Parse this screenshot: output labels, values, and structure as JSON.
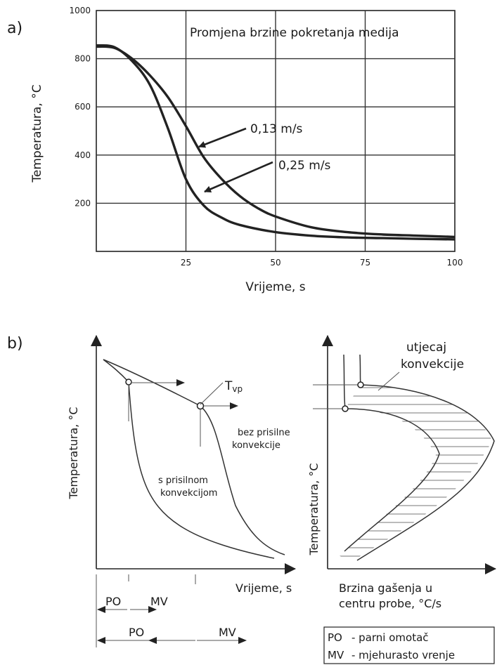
{
  "panel_a": {
    "label": "a)",
    "title": "Promjena brzine pokretanja medija",
    "ylabel": "Temperatura, °C",
    "xlabel": "Vrijeme, s",
    "annotations": [
      "0,13 m/s",
      "0,25 m/s"
    ]
  },
  "panel_b": {
    "label": "b)",
    "left": {
      "ylabel": "Temperatura, °C",
      "xlabel": "Vrijeme, s",
      "tvp_main": "T",
      "tvp_sub": "vp",
      "curve_label_upper": [
        "bez prisilne",
        "konvekcije"
      ],
      "curve_label_lower": [
        "s prisilnom",
        "konvekcijom"
      ],
      "phase_row1": [
        "PO",
        "MV"
      ],
      "phase_row2": [
        "PO",
        "MV"
      ]
    },
    "right": {
      "ylabel": "Temperatura, °C",
      "xlabel": [
        "Brzina gašenja u",
        "centru probe, °C/s"
      ],
      "annotation": [
        "utjecaj",
        "konvekcije"
      ]
    },
    "legend": [
      {
        "abbr": "PO",
        "text": "- parni omotač"
      },
      {
        "abbr": "MV",
        "text": "- mjehurasto vrenje"
      }
    ]
  },
  "chart_data": [
    {
      "type": "line",
      "title": "Promjena brzine pokretanja medija",
      "xlabel": "Vrijeme, s",
      "ylabel": "Temperatura, °C",
      "xlim": [
        0,
        100
      ],
      "ylim": [
        0,
        1000
      ],
      "xticks": [
        25,
        50,
        75,
        100
      ],
      "yticks": [
        200,
        400,
        600,
        800,
        1000
      ],
      "grid": true,
      "series": [
        {
          "name": "0,13 m/s",
          "x": [
            0,
            5,
            10,
            15,
            20,
            25,
            30,
            35,
            40,
            45,
            50,
            60,
            70,
            80,
            90,
            100
          ],
          "y": [
            850,
            845,
            800,
            730,
            640,
            520,
            390,
            300,
            230,
            180,
            145,
            100,
            80,
            70,
            65,
            60
          ]
        },
        {
          "name": "0,25 m/s",
          "x": [
            0,
            5,
            10,
            15,
            20,
            25,
            30,
            35,
            40,
            50,
            60,
            70,
            80,
            90,
            100
          ],
          "y": [
            855,
            848,
            790,
            690,
            510,
            300,
            190,
            140,
            110,
            80,
            65,
            58,
            55,
            52,
            50
          ]
        }
      ]
    },
    {
      "type": "line",
      "xlabel": "Vrijeme, s",
      "ylabel": "Temperatura, °C",
      "series": [
        {
          "name": "bez prisilne konvekcije"
        },
        {
          "name": "s prisilnom konvekcijom"
        }
      ]
    },
    {
      "type": "area",
      "xlabel": "Brzina gašenja u centru probe, °C/s",
      "ylabel": "Temperatura, °C"
    }
  ]
}
